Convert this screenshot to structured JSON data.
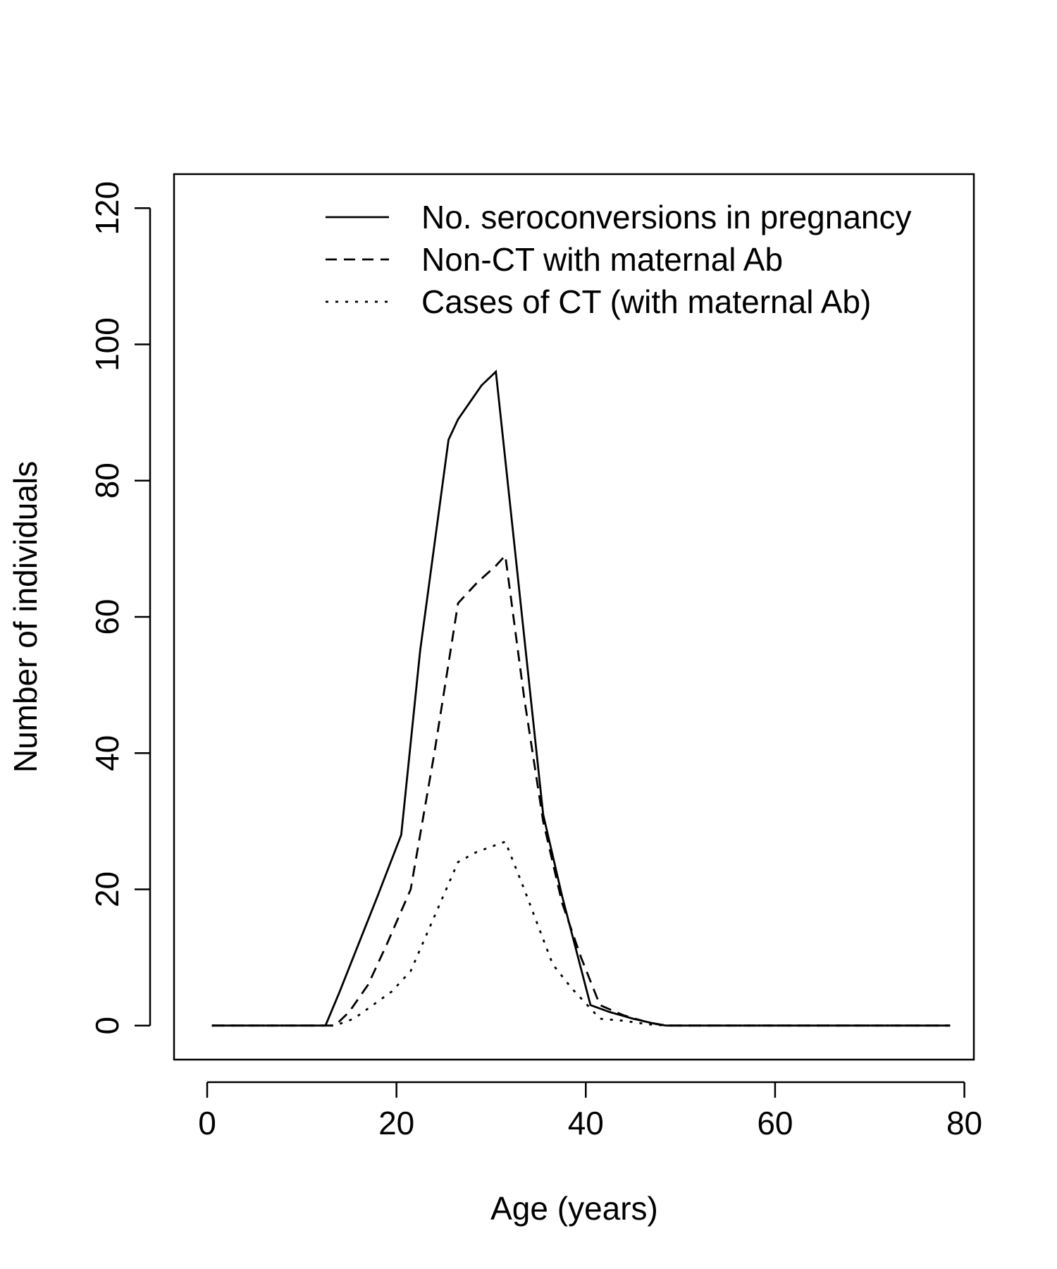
{
  "chart_data": {
    "type": "line",
    "xlabel": "Age (years)",
    "ylabel": "Number of individuals",
    "xlim": [
      -3.5,
      81
    ],
    "ylim": [
      -5,
      125
    ],
    "xticks": [
      0,
      20,
      40,
      60,
      80
    ],
    "yticks": [
      0,
      20,
      40,
      60,
      80,
      100,
      120
    ],
    "grid": false,
    "legend_position": "top-right",
    "series": [
      {
        "name": "No. seroconversions in pregnancy",
        "style": "solid",
        "x": [
          0.5,
          12.5,
          14,
          16,
          18,
          20.5,
          22.5,
          25.5,
          26.5,
          28,
          29,
          30.5,
          32.5,
          35.5,
          37.5,
          40.5,
          42.5,
          45,
          47.5,
          48.5,
          78.5
        ],
        "y": [
          0,
          0,
          5,
          12,
          19,
          28,
          55,
          86,
          89,
          92,
          94,
          96,
          70,
          31,
          19,
          3,
          2,
          1,
          0.2,
          0,
          0
        ]
      },
      {
        "name": "Non-CT with maternal Ab",
        "style": "dashed",
        "x": [
          0.5,
          13.5,
          15,
          17,
          19,
          21.5,
          24,
          26.5,
          28.5,
          30.5,
          31.5,
          33.5,
          35.5,
          37.5,
          39.5,
          41.5,
          44,
          46.5,
          48.5,
          78.5
        ],
        "y": [
          0,
          0,
          2,
          6,
          12,
          20,
          40,
          62,
          65,
          67.5,
          69,
          48,
          30,
          18,
          10,
          3,
          1.5,
          0.5,
          0,
          0
        ]
      },
      {
        "name": "Cases of CT (with maternal Ab)",
        "style": "dotted",
        "x": [
          0.5,
          13.5,
          15.5,
          17.5,
          19.5,
          21.5,
          24,
          26.5,
          28.5,
          30.5,
          31.5,
          33.5,
          36.5,
          38.5,
          40.5,
          41.5,
          44,
          46.5,
          48.5,
          78.5
        ],
        "y": [
          0,
          0,
          1,
          3,
          5,
          8,
          16,
          24,
          25.5,
          26.5,
          27,
          20,
          9,
          5.5,
          2.5,
          1,
          0.7,
          0.2,
          0,
          0
        ]
      }
    ]
  }
}
